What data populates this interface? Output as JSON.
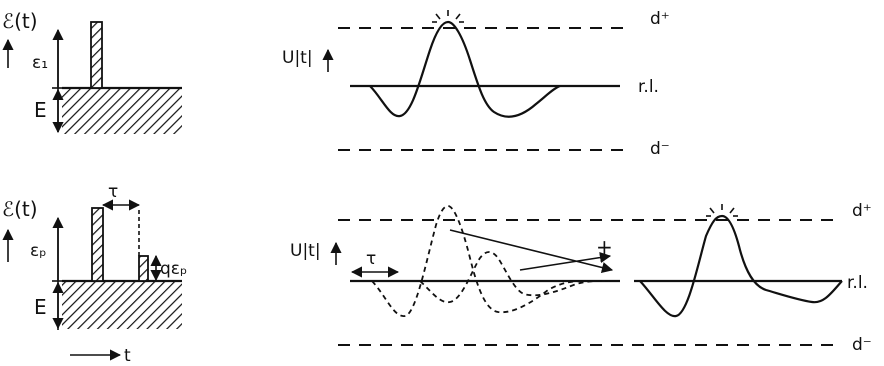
{
  "labels": {
    "field_symbol": "ℰ(t)",
    "epsilon_1": "ε₁",
    "epsilon_p": "εₚ",
    "E": "E",
    "tau": "τ",
    "q_epsilon_p": "qεₚ",
    "t_axis": "t",
    "U_t": "U|t|",
    "d_plus": "d⁺",
    "d_minus": "d⁻",
    "reference_level": "r.l.",
    "plus": "+"
  },
  "colors": {
    "ink": "#111111",
    "background": "#ffffff"
  }
}
